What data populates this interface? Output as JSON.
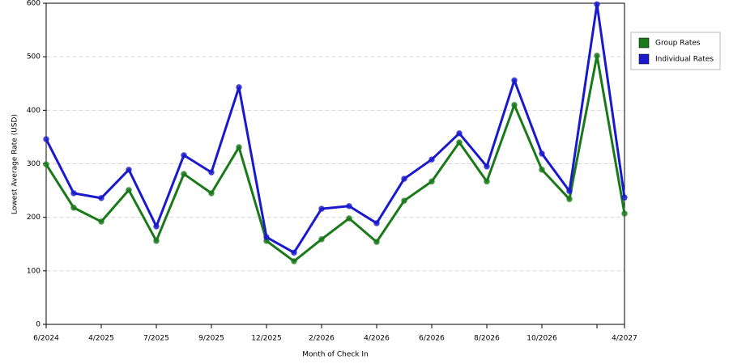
{
  "chart_data": {
    "type": "line",
    "x_label": "Month of Check In",
    "y_label": "Lowest Average Rate (USD)",
    "categories": [
      "6/2024",
      null,
      "4/2025",
      null,
      "7/2025",
      null,
      "9/2025",
      null,
      "12/2025",
      null,
      "2/2026",
      null,
      "4/2026",
      null,
      "6/2026",
      null,
      "8/2026",
      null,
      "10/2026",
      null,
      null,
      "4/2027"
    ],
    "series": [
      {
        "name": "Group Rates",
        "color": "#1a7a1a",
        "values": [
          299,
          218,
          192,
          251,
          156,
          281,
          245,
          331,
          156,
          118,
          159,
          198,
          154,
          231,
          267,
          340,
          267,
          410,
          289,
          234,
          502,
          207
        ]
      },
      {
        "name": "Individual Rates",
        "color": "#1a1acc",
        "values": [
          346,
          245,
          236,
          289,
          183,
          316,
          284,
          443,
          163,
          134,
          216,
          221,
          189,
          272,
          308,
          357,
          295,
          456,
          319,
          249,
          598,
          237
        ]
      }
    ],
    "ylim": [
      0,
      600
    ],
    "yticks": [
      0,
      100,
      200,
      300,
      400,
      500,
      600
    ],
    "grid": true
  }
}
